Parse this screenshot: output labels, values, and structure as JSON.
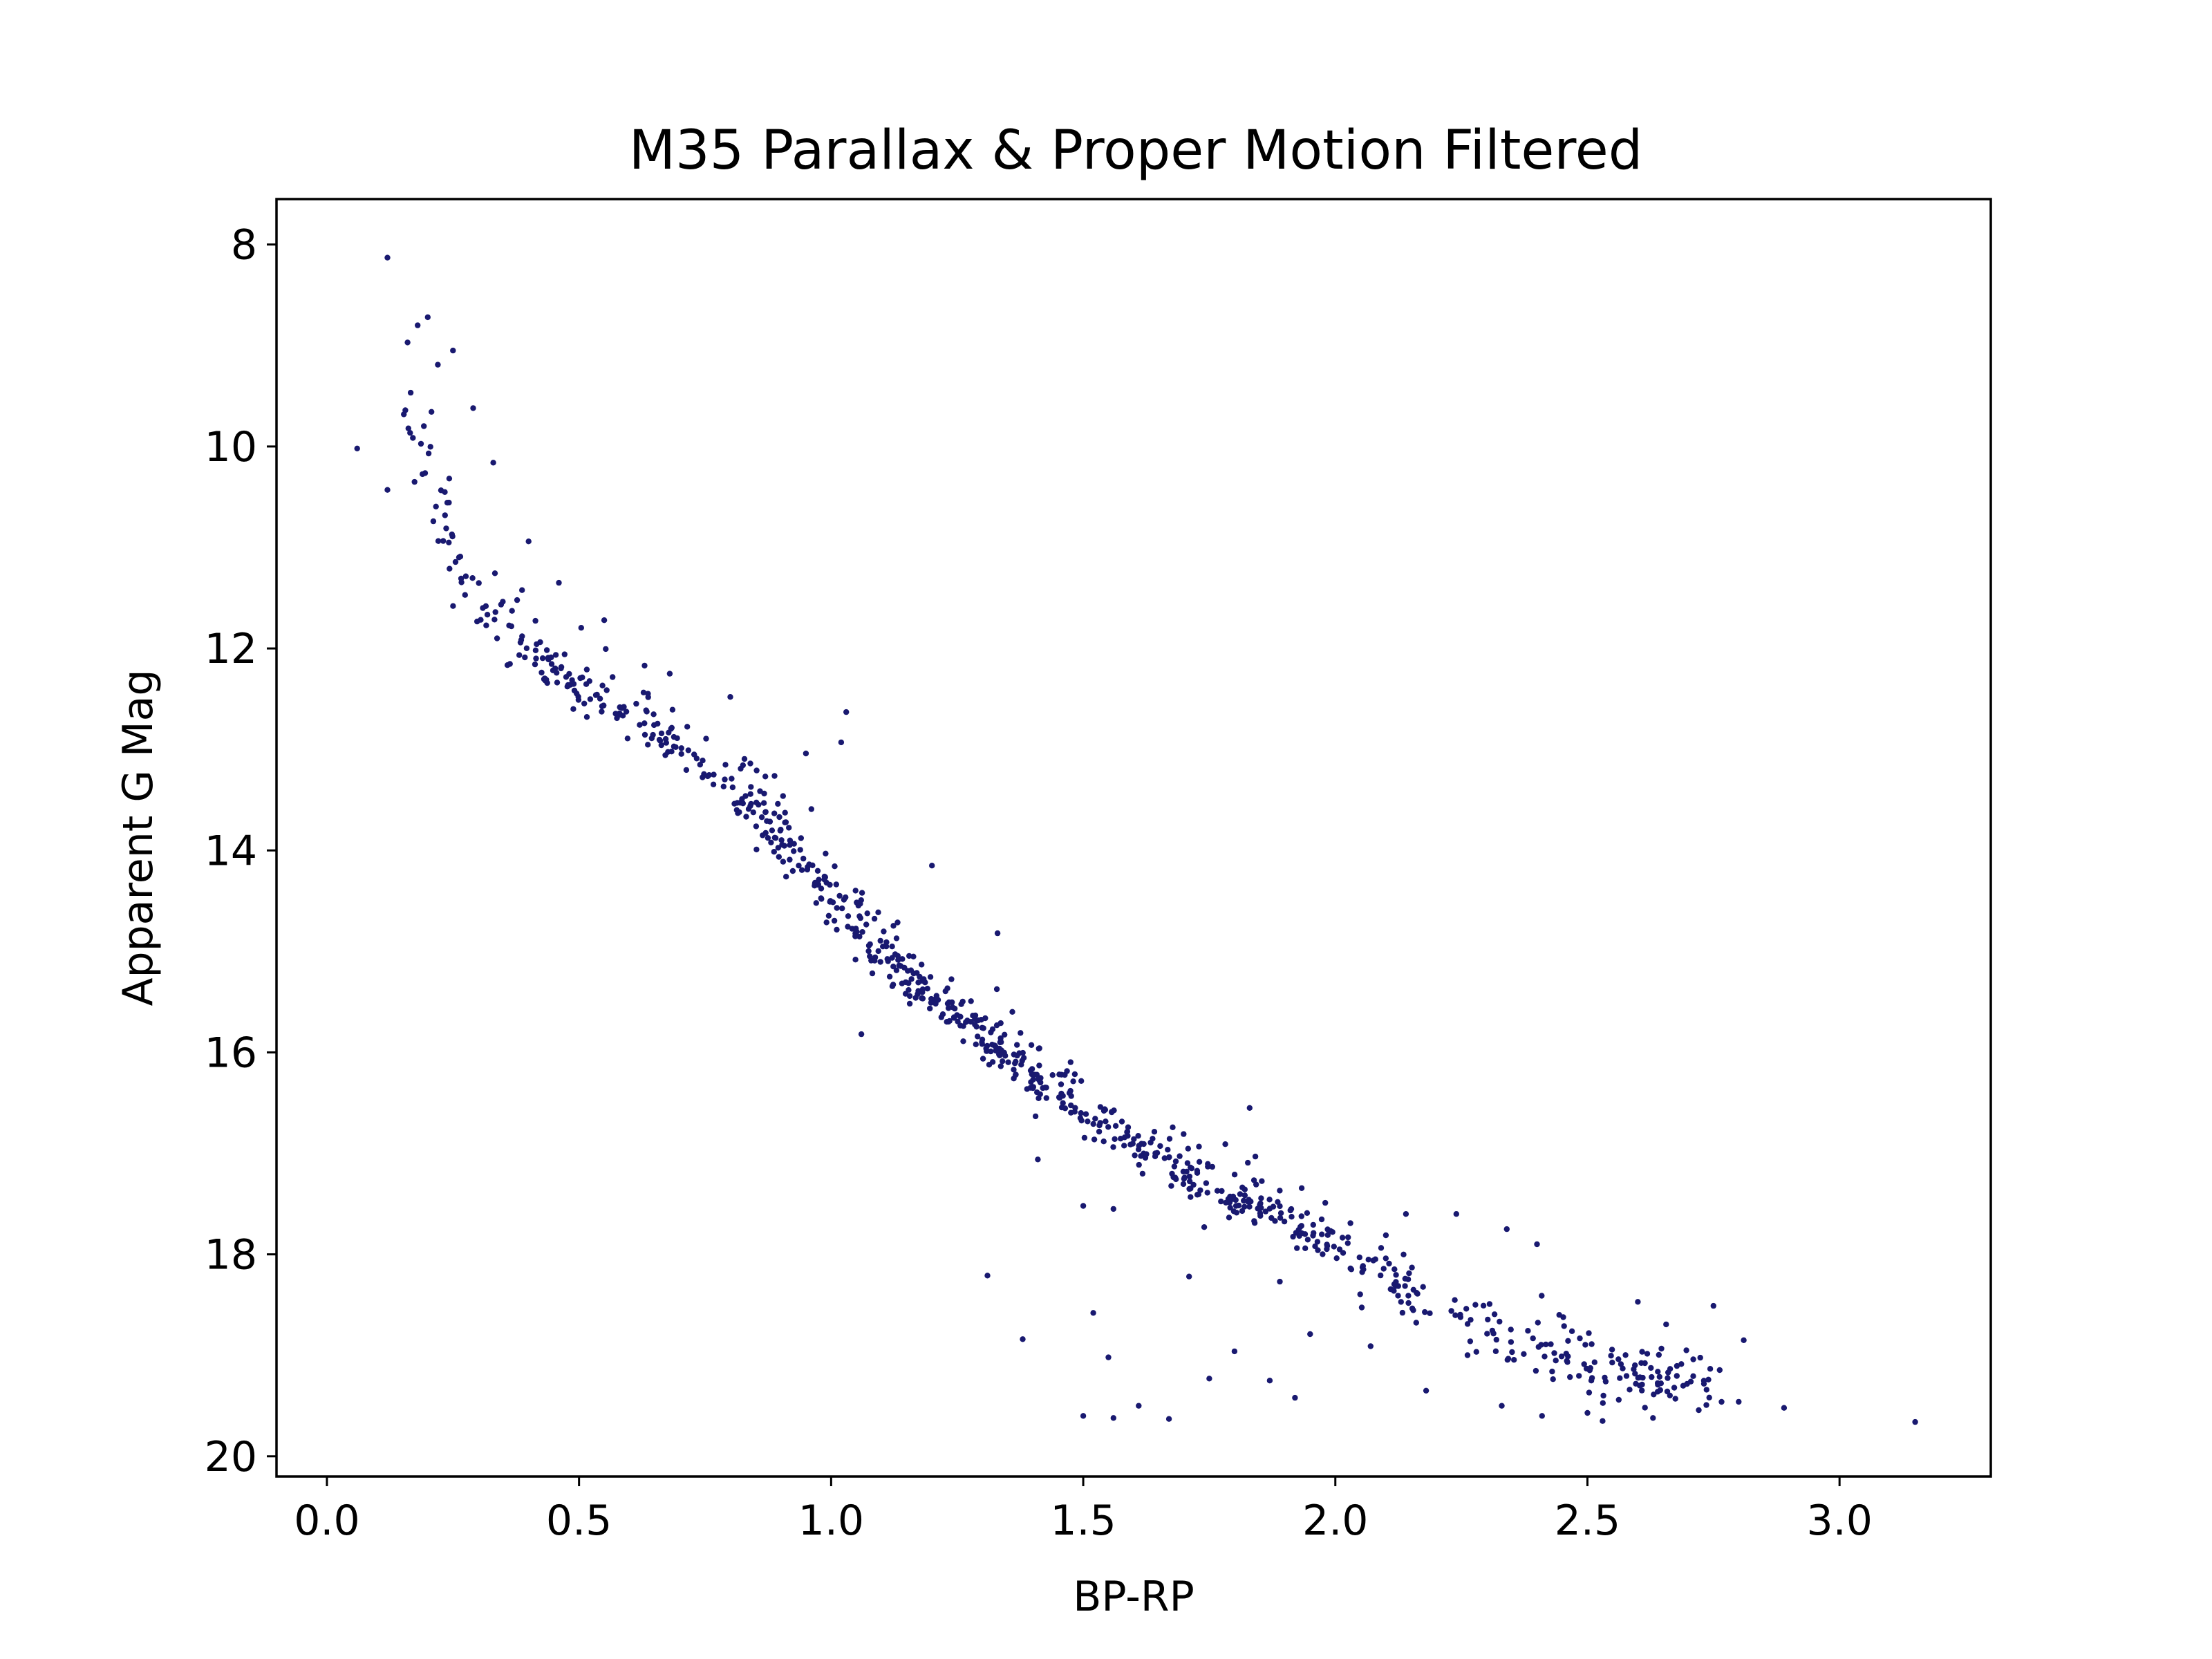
{
  "chart_data": {
    "type": "scatter",
    "title": "M35 Parallax & Proper Motion Filtered",
    "xlabel": "BP-RP",
    "ylabel": "Apparent G Mag",
    "xlim": [
      -0.1,
      3.3
    ],
    "ylim": [
      20.2,
      7.55
    ],
    "y_inverted": true,
    "grid": false,
    "legend": "none",
    "marker_color": "#191970",
    "x_ticks": [
      0.0,
      0.5,
      1.0,
      1.5,
      2.0,
      2.5,
      3.0
    ],
    "x_tick_labels": [
      "0.0",
      "0.5",
      "1.0",
      "1.5",
      "2.0",
      "2.5",
      "3.0"
    ],
    "y_ticks": [
      8,
      10,
      12,
      14,
      16,
      18,
      20
    ],
    "y_tick_labels": [
      "8",
      "10",
      "12",
      "14",
      "16",
      "18",
      "20"
    ],
    "highlighted_points": [
      [
        0.12,
        8.13
      ],
      [
        0.06,
        10.02
      ],
      [
        0.12,
        10.43
      ],
      [
        0.2,
        8.72
      ],
      [
        0.18,
        8.8
      ],
      [
        0.16,
        8.97
      ],
      [
        0.25,
        9.05
      ],
      [
        0.22,
        9.19
      ],
      [
        0.29,
        9.62
      ],
      [
        0.33,
        10.16
      ],
      [
        0.4,
        10.94
      ],
      [
        0.46,
        11.35
      ],
      [
        0.55,
        11.72
      ],
      [
        0.63,
        12.17
      ],
      [
        0.68,
        12.25
      ],
      [
        0.8,
        12.48
      ],
      [
        1.03,
        12.63
      ],
      [
        1.02,
        12.93
      ],
      [
        0.95,
        13.04
      ],
      [
        1.2,
        14.15
      ],
      [
        1.33,
        14.82
      ],
      [
        1.06,
        15.82
      ],
      [
        1.41,
        17.06
      ],
      [
        1.5,
        17.52
      ],
      [
        1.56,
        17.55
      ],
      [
        1.83,
        16.55
      ],
      [
        1.31,
        18.21
      ],
      [
        1.38,
        18.84
      ],
      [
        1.52,
        18.58
      ],
      [
        1.55,
        19.02
      ],
      [
        1.5,
        19.6
      ],
      [
        1.56,
        19.62
      ],
      [
        1.61,
        19.5
      ],
      [
        1.67,
        19.63
      ],
      [
        1.75,
        19.23
      ],
      [
        1.8,
        18.96
      ],
      [
        1.87,
        19.25
      ],
      [
        1.92,
        19.42
      ],
      [
        1.95,
        18.79
      ],
      [
        2.07,
        18.91
      ],
      [
        1.71,
        18.22
      ],
      [
        1.74,
        17.73
      ],
      [
        1.89,
        18.27
      ],
      [
        2.14,
        17.6
      ],
      [
        2.24,
        17.6
      ],
      [
        2.34,
        17.75
      ],
      [
        2.4,
        17.9
      ],
      [
        2.18,
        19.35
      ],
      [
        2.33,
        19.5
      ],
      [
        2.41,
        19.6
      ],
      [
        2.5,
        19.57
      ],
      [
        2.53,
        19.65
      ],
      [
        2.63,
        19.62
      ],
      [
        2.6,
        18.47
      ],
      [
        2.75,
        18.51
      ],
      [
        2.81,
        18.85
      ],
      [
        2.89,
        19.52
      ],
      [
        3.15,
        19.66
      ],
      [
        2.71,
        19.04
      ],
      [
        2.8,
        19.46
      ],
      [
        2.74,
        19.24
      ],
      [
        2.43,
        19.16
      ],
      [
        2.57,
        19.13
      ],
      [
        2.66,
        19.17
      ]
    ]
  }
}
